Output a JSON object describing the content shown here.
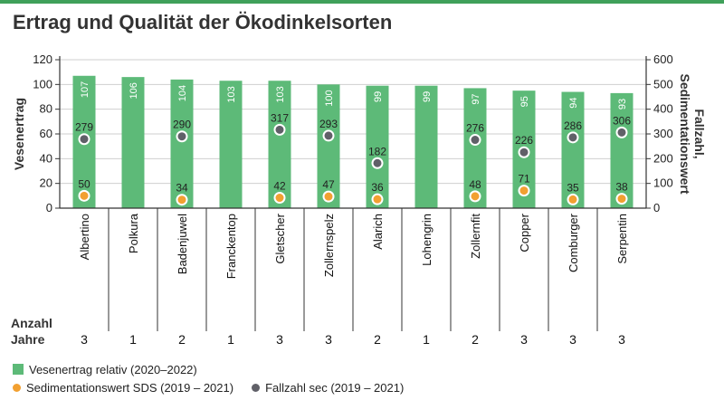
{
  "title": "Ertrag und Qualität der Ökodinkelsorten",
  "colors": {
    "accent": "#3fa05a",
    "bar": "#5dba78",
    "sds": "#f2a031",
    "fallzahl": "#606068"
  },
  "years_label": [
    "Anzahl",
    "Jahre"
  ],
  "legend": {
    "bar": "Vesenertrag relativ (2020–2022)",
    "sds": "Sedimentationswert SDS (2019 – 2021)",
    "fallzahl": "Fallzahl sec (2019 – 2021)"
  },
  "chart_data": {
    "type": "bar",
    "categories": [
      "Albertino",
      "Polkura",
      "Badenjuwel",
      "Franckentop",
      "Gletscher",
      "Zollernspelz",
      "Alarich",
      "Lohengrin",
      "Zollernfit",
      "Copper",
      "Comburger",
      "Serpentin"
    ],
    "series": [
      {
        "name": "Vesenertrag relativ (2020–2022)",
        "axis": "left",
        "type": "bar",
        "values": [
          107,
          106,
          104,
          103,
          103,
          100,
          99,
          99,
          97,
          95,
          94,
          93
        ]
      },
      {
        "name": "Sedimentationswert SDS (2019 – 2021)",
        "axis": "right",
        "type": "scatter",
        "values": [
          50,
          null,
          34,
          null,
          42,
          47,
          36,
          null,
          48,
          71,
          35,
          38
        ]
      },
      {
        "name": "Fallzahl sec (2019 – 2021)",
        "axis": "right",
        "type": "scatter",
        "values": [
          279,
          null,
          290,
          null,
          317,
          293,
          182,
          null,
          276,
          226,
          286,
          306
        ]
      }
    ],
    "years": [
      3,
      1,
      2,
      1,
      3,
      3,
      2,
      1,
      2,
      3,
      3,
      3
    ],
    "ylabel_left": "Vesenertrag",
    "ylabel_right": [
      "Fallzahl,",
      "Sedimentationswert"
    ],
    "ylim_left": [
      0,
      120
    ],
    "yticks_left": [
      0,
      20,
      40,
      60,
      80,
      100,
      120
    ],
    "ylim_right": [
      0,
      600
    ],
    "yticks_right": [
      0,
      100,
      200,
      300,
      400,
      500,
      600
    ],
    "grid": true
  }
}
